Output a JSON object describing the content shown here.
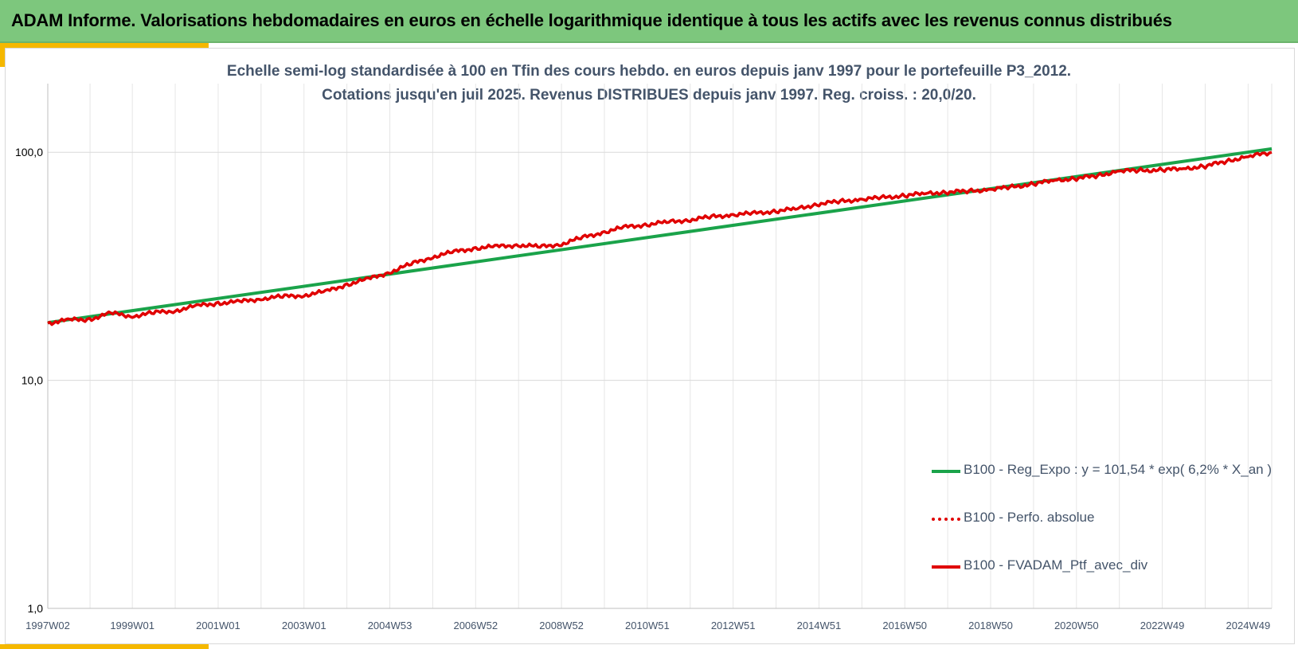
{
  "banner": {
    "title": "ADAM Informe. Valorisations hebdomadaires en euros en échelle logarithmique identique à tous les actifs avec les revenus connus distribués"
  },
  "colors": {
    "banner_bg": "#7dc77d",
    "accent": "#f5b800",
    "regression": "#1aa34a",
    "portfolio": "#e00000",
    "text": "#44546a",
    "grid": "#e6e6e6"
  },
  "chart_data": {
    "type": "line",
    "title": "Echelle semi-log standardisée  à 100 en Tfin des cours hebdo.  en euros depuis janv 1997 pour  le portefeuille  P3_2012.",
    "subtitle": "Cotations  jusqu'en juil 2025. Revenus DISTRIBUES depuis janv 1997. Reg. croiss. : 20,0/20.",
    "xlabel": "",
    "ylabel": "",
    "y_scale": "log",
    "ylim": [
      1,
      200
    ],
    "xlim": [
      1997.03,
      2025.55
    ],
    "x_ticks": [
      {
        "label": "1997W02",
        "x": 1997.03
      },
      {
        "label": "1999W01",
        "x": 1999.0
      },
      {
        "label": "2001W01",
        "x": 2001.0
      },
      {
        "label": "2003W01",
        "x": 2003.0
      },
      {
        "label": "2004W53",
        "x": 2005.0
      },
      {
        "label": "2006W52",
        "x": 2007.0
      },
      {
        "label": "2008W52",
        "x": 2009.0
      },
      {
        "label": "2010W51",
        "x": 2011.0
      },
      {
        "label": "2012W51",
        "x": 2013.0
      },
      {
        "label": "2014W51",
        "x": 2015.0
      },
      {
        "label": "2016W50",
        "x": 2017.0
      },
      {
        "label": "2018W50",
        "x": 2019.0
      },
      {
        "label": "2020W50",
        "x": 2021.0
      },
      {
        "label": "2022W49",
        "x": 2023.0
      },
      {
        "label": "2024W49",
        "x": 2025.0
      }
    ],
    "y_ticks": [
      {
        "label": "1,0",
        "value": 1
      },
      {
        "label": "10,0",
        "value": 10
      },
      {
        "label": "100,0",
        "value": 100
      }
    ],
    "grid": true,
    "legend_position": "bottom-right",
    "series": [
      {
        "name": "B100 - Reg_Expo : y = 101,54 * exp( 6,2% *  X_an )",
        "style": "solid",
        "color": "#1aa34a",
        "x": [
          1997.03,
          2025.55
        ],
        "values": [
          17.9,
          103.5
        ]
      },
      {
        "name": "B100 - Perfo. absolue",
        "style": "dotted",
        "color": "#e00000",
        "x": [],
        "values": []
      },
      {
        "name": "B100 - FVADAM_Ptf_avec_div",
        "style": "solid",
        "color": "#e00000",
        "x": [
          1997.03,
          1997.5,
          1998.0,
          1998.5,
          1999.0,
          1999.5,
          2000.0,
          2000.5,
          2001.0,
          2001.5,
          2002.0,
          2002.5,
          2003.0,
          2003.5,
          2004.0,
          2004.5,
          2005.0,
          2005.5,
          2006.0,
          2006.5,
          2007.0,
          2007.5,
          2008.0,
          2008.5,
          2009.0,
          2009.5,
          2010.0,
          2010.5,
          2011.0,
          2011.5,
          2012.0,
          2012.5,
          2013.0,
          2013.5,
          2014.0,
          2014.5,
          2015.0,
          2015.5,
          2016.0,
          2016.5,
          2017.0,
          2017.5,
          2018.0,
          2018.5,
          2019.0,
          2019.5,
          2020.0,
          2020.5,
          2021.0,
          2021.5,
          2022.0,
          2022.5,
          2023.0,
          2023.5,
          2024.0,
          2024.5,
          2025.0,
          2025.55
        ],
        "values": [
          17.8,
          18.4,
          18.5,
          19.7,
          19.1,
          19.8,
          20.2,
          21.2,
          21.8,
          22.1,
          22.8,
          23.3,
          23.6,
          24.5,
          26.3,
          27.8,
          29.8,
          32.4,
          34.8,
          36.6,
          38.0,
          38.6,
          39.2,
          38.5,
          39.6,
          42.3,
          44.7,
          47.0,
          48.2,
          49.5,
          50.6,
          52.1,
          53.2,
          54.0,
          55.2,
          56.6,
          59.4,
          60.9,
          62.2,
          63.3,
          64.6,
          66.0,
          66.9,
          67.6,
          68.7,
          70.4,
          72.6,
          75.4,
          76.8,
          79.0,
          82.8,
          83.2,
          83.6,
          84.8,
          86.8,
          91.6,
          95.7,
          100.0
        ]
      }
    ]
  }
}
